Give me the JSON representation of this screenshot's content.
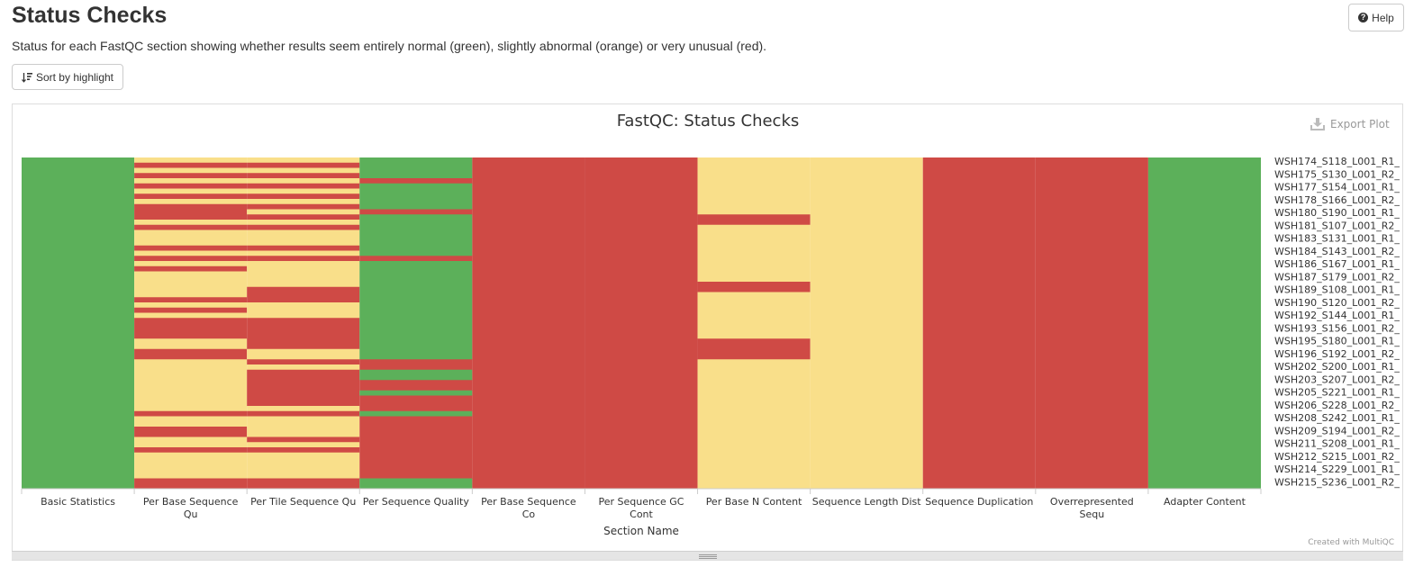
{
  "page": {
    "title": "Status Checks",
    "description": "Status for each FastQC section showing whether results seem entirely normal (green), slightly abnormal (orange) or very unusual (red).",
    "help_label": "Help",
    "help_icon": "question-circle-icon",
    "sort_label": "Sort by highlight",
    "sort_icon": "sort-amount-down-icon",
    "export_label": "Export Plot",
    "export_icon": "download-icon",
    "credit": "Created with MultiQC"
  },
  "chart_data": {
    "type": "heatmap",
    "title": "FastQC: Status Checks",
    "xlabel": "Section Name",
    "ylabel": "",
    "categories": [
      "Basic Statistics",
      "Per Base Sequence Qu",
      "Per Tile Sequence Qu",
      "Per Sequence Quality",
      "Per Base Sequence Co",
      "Per Sequence GC Cont",
      "Per Base N Content",
      "Sequence Length Dist",
      "Sequence Duplication",
      "Overrepresented Sequ",
      "Adapter Content"
    ],
    "sample_labels": [
      "WSH174_S118_L001_R1_",
      "WSH175_S130_L001_R2_",
      "WSH177_S154_L001_R1_",
      "WSH178_S166_L001_R2_",
      "WSH180_S190_L001_R1_",
      "WSH181_S107_L001_R2_",
      "WSH183_S131_L001_R1_",
      "WSH184_S143_L001_R2_",
      "WSH186_S167_L001_R1_",
      "WSH187_S179_L001_R2_",
      "WSH189_S108_L001_R1_",
      "WSH190_S120_L001_R2_",
      "WSH192_S144_L001_R1_",
      "WSH193_S156_L001_R2_",
      "WSH195_S180_L001_R1_",
      "WSH196_S192_L001_R2_",
      "WSH202_S200_L001_R1_",
      "WSH203_S207_L001_R2_",
      "WSH205_S221_L001_R1_",
      "WSH206_S228_L001_R2_",
      "WSH208_S242_L001_R1_",
      "WSH209_S194_L001_R2_",
      "WSH211_S208_L001_R1_",
      "WSH212_S215_L001_R2_",
      "WSH214_S229_L001_R1_",
      "WSH215_S236_L001_R2_"
    ],
    "status_legend": {
      "pass": "#5cb05a",
      "warn": "#f9df8a",
      "fail": "#cf4a45"
    },
    "default_status": [
      "pass",
      "fail",
      "fail",
      "pass",
      "fail",
      "fail",
      "warn",
      "warn",
      "fail",
      "fail",
      "pass"
    ],
    "status_runs": [
      {
        "section": 1,
        "status": "warn",
        "rows": [
          [
            0,
            0.8
          ],
          [
            2,
            2.6
          ],
          [
            4,
            4.6
          ],
          [
            6,
            6.6
          ],
          [
            8,
            8.6
          ],
          [
            12.2,
            12.8
          ],
          [
            14.8,
            15.4
          ],
          [
            16.4,
            17.0
          ],
          [
            18.4,
            19.0
          ],
          [
            20.4,
            21.0
          ],
          [
            22.4,
            23.0
          ],
          [
            23.6,
            24.2
          ],
          [
            25.0,
            25.6
          ],
          [
            26.0,
            26.5
          ],
          [
            28.4,
            29.0
          ],
          [
            30.0,
            30.6
          ],
          [
            35.4,
            36.2
          ],
          [
            39.6,
            40.2
          ],
          [
            41.4,
            42.0
          ],
          [
            42.6,
            43.2
          ],
          [
            44.2,
            44.8
          ],
          [
            45.6,
            46.2
          ],
          [
            47.8,
            48.4
          ],
          [
            50.5,
            51.2
          ],
          [
            54.6,
            55.2
          ],
          [
            57.4,
            58.1
          ],
          [
            58.6,
            59.2
          ],
          [
            59.8,
            60.4
          ],
          [
            61.0,
            61.6
          ]
        ]
      },
      {
        "section": 2,
        "status": "warn",
        "rows": [
          [
            0,
            0.8
          ],
          [
            2,
            2.6
          ],
          [
            4,
            4.6
          ],
          [
            6,
            6.6
          ],
          [
            8,
            8.6
          ],
          [
            10.2,
            11.0
          ],
          [
            12.2,
            12.8
          ],
          [
            14.8,
            15.4
          ],
          [
            16.4,
            17.0
          ],
          [
            18.4,
            19.0
          ],
          [
            20.4,
            21.0
          ],
          [
            21.6,
            22.4
          ],
          [
            23.6,
            24.2
          ],
          [
            28.4,
            29.0
          ],
          [
            29.6,
            30.4
          ],
          [
            37.8,
            38.6
          ],
          [
            40.2,
            41.0
          ],
          [
            48.4,
            49.0
          ],
          [
            50.6,
            51.2
          ],
          [
            52.0,
            52.6
          ],
          [
            53.2,
            53.9
          ],
          [
            55.2,
            56.0
          ],
          [
            57.4,
            58.1
          ],
          [
            58.6,
            59.2
          ],
          [
            59.8,
            60.4
          ],
          [
            61.0,
            61.6
          ]
        ]
      },
      {
        "section": 3,
        "status": "fail",
        "rows": [
          [
            4.0,
            4.6
          ],
          [
            10.0,
            10.8
          ],
          [
            19.0,
            19.6
          ],
          [
            39.2,
            40.2
          ],
          [
            43.6,
            44.2
          ],
          [
            46.2,
            47.6
          ],
          [
            48.6,
            49.0
          ],
          [
            50.2,
            50.8
          ],
          [
            51.6,
            52.2
          ],
          [
            52.6,
            53.2
          ],
          [
            54.0,
            54.6
          ],
          [
            55.4,
            56.0
          ],
          [
            56.8,
            57.4
          ],
          [
            58.2,
            58.8
          ],
          [
            59.6,
            60.2
          ],
          [
            61.0,
            61.6
          ]
        ]
      },
      {
        "section": 6,
        "status": "fail",
        "rows": [
          [
            11.4,
            13.0
          ],
          [
            24.2,
            25.8
          ],
          [
            35.4,
            38.4
          ]
        ]
      }
    ]
  }
}
